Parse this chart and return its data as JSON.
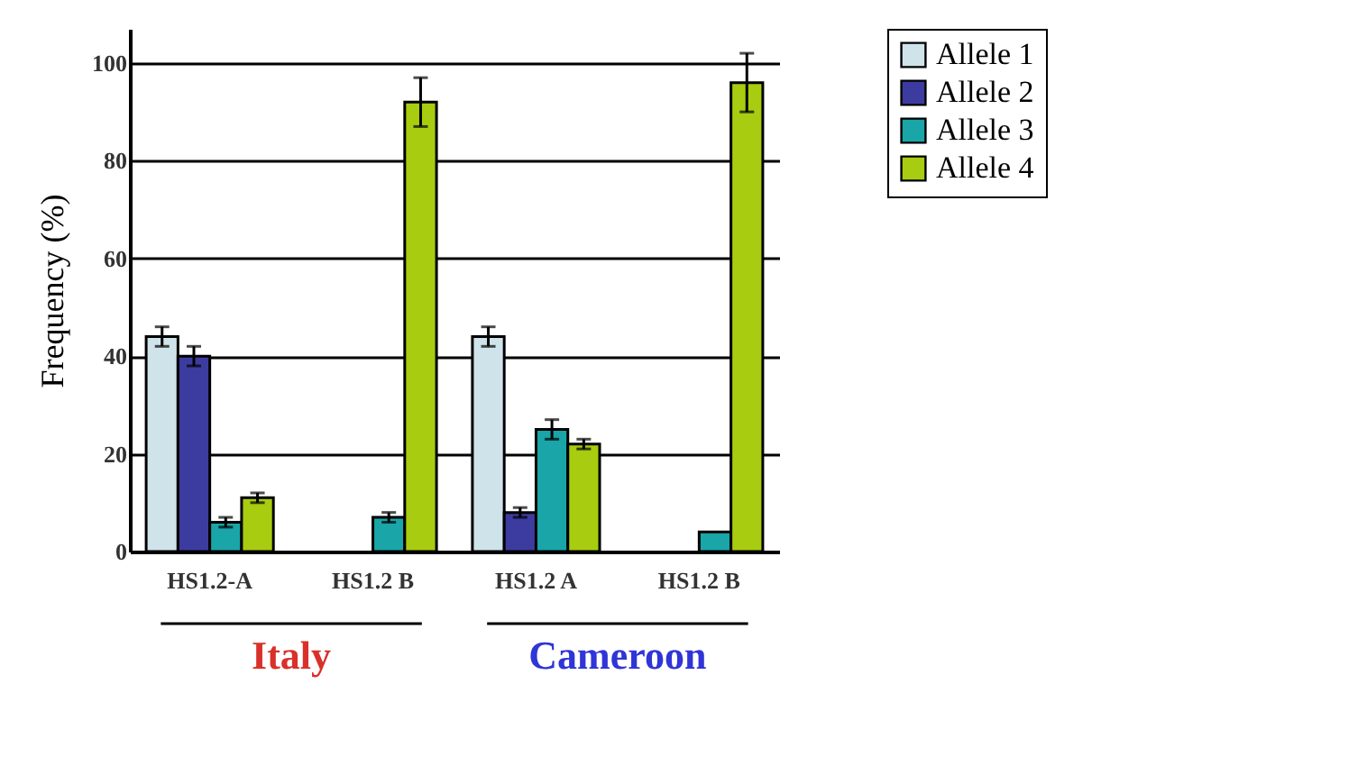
{
  "chart_data": {
    "type": "bar",
    "ylabel": "Frequency (%)",
    "categories": [
      "HS1.2-A",
      "HS1.2 B",
      "HS1.2 A",
      "HS1.2 B"
    ],
    "series": [
      {
        "name": "Allele 1",
        "color": "#cfe3ea",
        "values": [
          44,
          null,
          44,
          null
        ],
        "errors": [
          2,
          null,
          2,
          null
        ]
      },
      {
        "name": "Allele 2",
        "color": "#3c3ca0",
        "values": [
          40,
          null,
          8,
          null
        ],
        "errors": [
          2,
          null,
          1,
          null
        ]
      },
      {
        "name": "Allele 3",
        "color": "#1aa5a8",
        "values": [
          6,
          7,
          25,
          4
        ],
        "errors": [
          1,
          1,
          2,
          null
        ]
      },
      {
        "name": "Allele 4",
        "color": "#a8cc10",
        "values": [
          11,
          92,
          22,
          96
        ],
        "errors": [
          1,
          5,
          1,
          6
        ]
      }
    ],
    "ylim": [
      0,
      107
    ],
    "yticks": [
      0,
      20,
      40,
      60,
      80,
      100
    ],
    "grid": "y",
    "legend": "top right",
    "annotations": [
      "Italy",
      "Cameroon"
    ]
  }
}
